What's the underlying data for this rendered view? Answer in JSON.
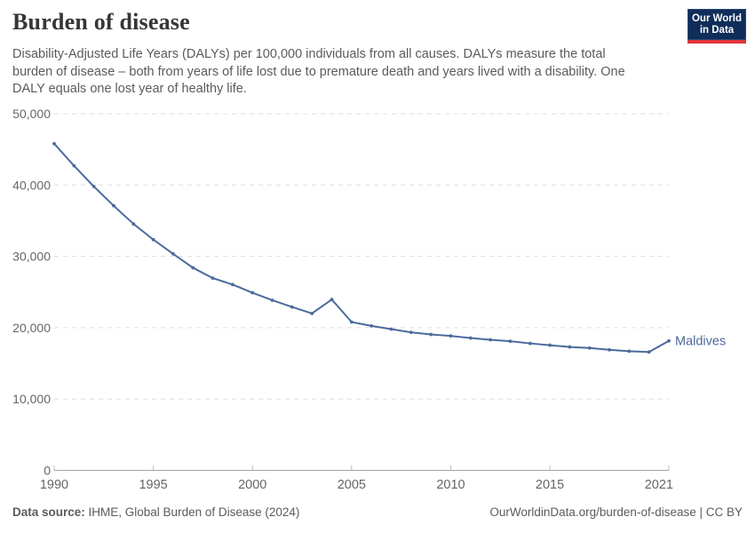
{
  "header": {
    "title": "Burden of disease",
    "subtitle_lines": [
      "Disability-Adjusted Life Years (DALYs) per 100,000 individuals from all causes. DALYs measure the total",
      "burden of disease – both from years of life lost due to premature death and years lived with a disability. One",
      "DALY equals one lost year of healthy life."
    ],
    "logo": {
      "line1": "Our World",
      "line2": "in Data"
    }
  },
  "chart_data": {
    "type": "line",
    "title": "Burden of disease",
    "xlabel": "",
    "ylabel": "DALYs per 100,000 individuals",
    "xlim": [
      1990,
      2021
    ],
    "ylim": [
      0,
      50000
    ],
    "x_ticks": [
      1990,
      1995,
      2000,
      2005,
      2010,
      2015,
      2021
    ],
    "y_ticks": [
      0,
      10000,
      20000,
      30000,
      40000,
      50000
    ],
    "grid": "horizontal-dashed",
    "legend_position": "end-of-line",
    "series": [
      {
        "name": "Maldives",
        "color": "#4C6A9C",
        "x": [
          1990,
          1991,
          1992,
          1993,
          1994,
          1995,
          1996,
          1997,
          1998,
          1999,
          2000,
          2001,
          2002,
          2003,
          2004,
          2005,
          2006,
          2007,
          2008,
          2009,
          2010,
          2011,
          2012,
          2013,
          2014,
          2015,
          2016,
          2017,
          2018,
          2019,
          2020,
          2021
        ],
        "values": [
          45800,
          42700,
          39800,
          37100,
          34550,
          32350,
          30350,
          28400,
          26950,
          26050,
          24900,
          23850,
          22900,
          22000,
          23950,
          20800,
          20250,
          19800,
          19350,
          19050,
          18850,
          18550,
          18300,
          18100,
          17800,
          17550,
          17300,
          17150,
          16900,
          16700,
          16600,
          18150
        ]
      }
    ]
  },
  "footer": {
    "source_label": "Data source:",
    "source_text": " IHME, Global Burden of Disease (2024)",
    "credit": "OurWorldinData.org/burden-of-disease | CC BY"
  },
  "colors": {
    "line": "#4C6A9C",
    "grid": "#dddddd",
    "axis": "#a5a5a5",
    "tick": "#b8b8b8",
    "tick_label": "#666666",
    "title": "#363636",
    "subtitle": "#5b5b5b",
    "logo_bg": "#102d59",
    "logo_red": "#e0343c"
  }
}
